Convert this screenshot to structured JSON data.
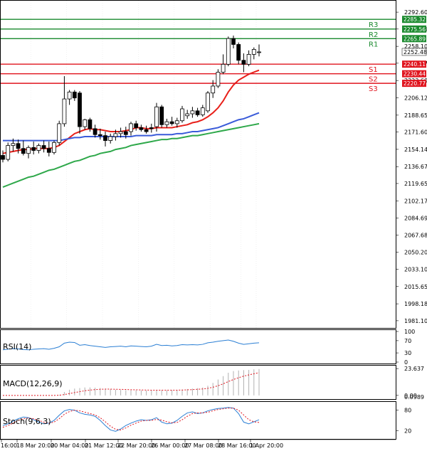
{
  "chart_data": [
    {
      "type": "candlestick",
      "title": "",
      "x_labels": [
        "16:00",
        "18 Mar 20:00",
        "20 Mar 04:00",
        "21 Mar 12:00",
        "22 Mar 20:00",
        "26 Mar 00:00",
        "27 Mar 08:00",
        "28 Mar 16:00",
        "1 Apr 20:00"
      ],
      "y_ticks": [
        2292.6,
        2275.56,
        2258.1,
        2241.07,
        2223.6,
        2206.12,
        2188.65,
        2171.6,
        2154.14,
        2136.67,
        2119.65,
        2102.17,
        2084.69,
        2067.68,
        2050.2,
        2033.1,
        2015.65,
        1998.18,
        1981.1
      ],
      "y_tick_labels": [
        "2292.60",
        "2275.56",
        "2258.10",
        "2241.07",
        "2223.60",
        "2206.12",
        "2188.65",
        "2171.60",
        "2154.14",
        "2136.67",
        "2119.65",
        "2102.17",
        "2084.69",
        "2067.68",
        "2050.20",
        "2033.10",
        "2015.65",
        "1998.18",
        "1981.10"
      ],
      "ylim": [
        1976.0,
        2302.0
      ],
      "last_price": 2252.48,
      "last_price_label": "2252.48",
      "candles": [
        {
          "o": 2148.0,
          "h": 2153.0,
          "l": 2141.0,
          "c": 2144.0
        },
        {
          "o": 2144.0,
          "h": 2161.0,
          "l": 2142.0,
          "c": 2158.0
        },
        {
          "o": 2158.0,
          "h": 2165.0,
          "l": 2152.0,
          "c": 2160.0
        },
        {
          "o": 2160.0,
          "h": 2164.0,
          "l": 2150.0,
          "c": 2155.0
        },
        {
          "o": 2155.0,
          "h": 2163.0,
          "l": 2148.0,
          "c": 2150.0
        },
        {
          "o": 2150.0,
          "h": 2158.0,
          "l": 2145.0,
          "c": 2156.0
        },
        {
          "o": 2156.0,
          "h": 2162.0,
          "l": 2149.0,
          "c": 2153.0
        },
        {
          "o": 2153.0,
          "h": 2160.0,
          "l": 2150.0,
          "c": 2158.0
        },
        {
          "o": 2158.0,
          "h": 2163.0,
          "l": 2151.0,
          "c": 2155.0
        },
        {
          "o": 2155.0,
          "h": 2162.0,
          "l": 2147.0,
          "c": 2151.0
        },
        {
          "o": 2151.0,
          "h": 2163.0,
          "l": 2149.0,
          "c": 2161.0
        },
        {
          "o": 2161.0,
          "h": 2183.0,
          "l": 2158.0,
          "c": 2180.0
        },
        {
          "o": 2180.0,
          "h": 2228.0,
          "l": 2177.0,
          "c": 2205.0
        },
        {
          "o": 2205.0,
          "h": 2214.0,
          "l": 2199.0,
          "c": 2212.0
        },
        {
          "o": 2212.0,
          "h": 2214.0,
          "l": 2203.0,
          "c": 2206.0
        },
        {
          "o": 2211.0,
          "h": 2213.0,
          "l": 2170.0,
          "c": 2177.0
        },
        {
          "o": 2177.0,
          "h": 2185.0,
          "l": 2174.0,
          "c": 2184.0
        },
        {
          "o": 2184.0,
          "h": 2186.0,
          "l": 2172.0,
          "c": 2175.0
        },
        {
          "o": 2175.0,
          "h": 2179.0,
          "l": 2166.0,
          "c": 2169.0
        },
        {
          "o": 2169.0,
          "h": 2175.0,
          "l": 2164.0,
          "c": 2168.0
        },
        {
          "o": 2168.0,
          "h": 2172.0,
          "l": 2157.0,
          "c": 2163.0
        },
        {
          "o": 2163.0,
          "h": 2170.0,
          "l": 2160.0,
          "c": 2167.0
        },
        {
          "o": 2167.0,
          "h": 2174.0,
          "l": 2163.0,
          "c": 2170.0
        },
        {
          "o": 2170.0,
          "h": 2176.0,
          "l": 2166.0,
          "c": 2172.0
        },
        {
          "o": 2172.0,
          "h": 2177.0,
          "l": 2165.0,
          "c": 2169.0
        },
        {
          "o": 2172.0,
          "h": 2182.0,
          "l": 2168.0,
          "c": 2180.0
        },
        {
          "o": 2180.0,
          "h": 2183.0,
          "l": 2173.0,
          "c": 2176.0
        },
        {
          "o": 2176.0,
          "h": 2179.0,
          "l": 2172.0,
          "c": 2174.0
        },
        {
          "o": 2174.0,
          "h": 2178.0,
          "l": 2170.0,
          "c": 2172.0
        },
        {
          "o": 2176.0,
          "h": 2180.0,
          "l": 2171.0,
          "c": 2175.0
        },
        {
          "o": 2177.0,
          "h": 2201.0,
          "l": 2172.0,
          "c": 2197.0
        },
        {
          "o": 2197.0,
          "h": 2199.0,
          "l": 2176.0,
          "c": 2179.0
        },
        {
          "o": 2179.0,
          "h": 2185.0,
          "l": 2176.0,
          "c": 2182.0
        },
        {
          "o": 2182.0,
          "h": 2187.0,
          "l": 2178.0,
          "c": 2180.0
        },
        {
          "o": 2180.0,
          "h": 2186.0,
          "l": 2176.0,
          "c": 2183.0
        },
        {
          "o": 2183.0,
          "h": 2198.0,
          "l": 2181.0,
          "c": 2195.0
        },
        {
          "o": 2188.0,
          "h": 2194.0,
          "l": 2185.0,
          "c": 2190.0
        },
        {
          "o": 2190.0,
          "h": 2197.0,
          "l": 2186.0,
          "c": 2193.0
        },
        {
          "o": 2193.0,
          "h": 2196.0,
          "l": 2187.0,
          "c": 2189.0
        },
        {
          "o": 2189.0,
          "h": 2199.0,
          "l": 2187.0,
          "c": 2196.0
        },
        {
          "o": 2193.0,
          "h": 2213.0,
          "l": 2191.0,
          "c": 2211.0
        },
        {
          "o": 2211.0,
          "h": 2224.0,
          "l": 2206.0,
          "c": 2218.0
        },
        {
          "o": 2218.0,
          "h": 2235.0,
          "l": 2216.0,
          "c": 2232.0
        },
        {
          "o": 2232.0,
          "h": 2250.0,
          "l": 2230.0,
          "c": 2240.0
        },
        {
          "o": 2240.0,
          "h": 2268.0,
          "l": 2238.0,
          "c": 2266.0
        },
        {
          "o": 2266.0,
          "h": 2269.0,
          "l": 2256.0,
          "c": 2260.0
        },
        {
          "o": 2260.0,
          "h": 2262.0,
          "l": 2240.0,
          "c": 2244.0
        },
        {
          "o": 2244.0,
          "h": 2251.0,
          "l": 2232.0,
          "c": 2240.0
        },
        {
          "o": 2240.0,
          "h": 2254.0,
          "l": 2238.0,
          "c": 2250.0
        },
        {
          "o": 2250.0,
          "h": 2257.0,
          "l": 2245.0,
          "c": 2255.0
        },
        {
          "o": 2252.0,
          "h": 2260.0,
          "l": 2248.0,
          "c": 2252.48
        }
      ],
      "moving_averages": [
        {
          "color": "#e8201a",
          "values": [
            2150.0,
            2151.0,
            2152.0,
            2153.0,
            2154.0,
            2154.0,
            2155.0,
            2155.0,
            2155.0,
            2155.0,
            2156.0,
            2158.0,
            2162.0,
            2166.0,
            2170.0,
            2172.0,
            2174.0,
            2175.0,
            2174.0,
            2174.0,
            2173.0,
            2172.0,
            2172.0,
            2172.0,
            2173.0,
            2174.0,
            2176.0,
            2176.0,
            2175.0,
            2175.0,
            2176.0,
            2176.0,
            2176.0,
            2176.0,
            2177.0,
            2178.0,
            2179.0,
            2181.0,
            2182.0,
            2184.0,
            2187.0,
            2191.0,
            2196.0,
            2203.0,
            2212.0,
            2219.0,
            2224.0,
            2227.0,
            2230.0,
            2232.0,
            2234.0
          ]
        },
        {
          "color": "#3a5bd9",
          "values": [
            2163.0,
            2163.0,
            2163.0,
            2163.0,
            2163.0,
            2163.0,
            2163.0,
            2163.0,
            2163.0,
            2163.0,
            2163.0,
            2163.0,
            2164.0,
            2165.0,
            2166.0,
            2166.0,
            2167.0,
            2167.0,
            2167.0,
            2167.0,
            2167.0,
            2167.0,
            2167.0,
            2167.0,
            2167.0,
            2167.0,
            2168.0,
            2168.0,
            2168.0,
            2168.0,
            2169.0,
            2169.0,
            2169.0,
            2169.0,
            2170.0,
            2170.0,
            2171.0,
            2172.0,
            2172.0,
            2173.0,
            2174.0,
            2175.0,
            2176.0,
            2178.0,
            2180.0,
            2182.0,
            2184.0,
            2185.0,
            2187.0,
            2189.0,
            2191.0
          ]
        },
        {
          "color": "#2ea84a",
          "values": [
            2116.0,
            2118.0,
            2120.0,
            2122.0,
            2124.0,
            2126.0,
            2127.0,
            2129.0,
            2131.0,
            2133.0,
            2134.0,
            2136.0,
            2138.0,
            2140.0,
            2142.0,
            2143.0,
            2145.0,
            2147.0,
            2148.0,
            2150.0,
            2151.0,
            2152.0,
            2154.0,
            2155.0,
            2156.0,
            2158.0,
            2159.0,
            2160.0,
            2161.0,
            2162.0,
            2163.0,
            2164.0,
            2164.0,
            2165.0,
            2165.0,
            2166.0,
            2167.0,
            2168.0,
            2168.0,
            2169.0,
            2170.0,
            2171.0,
            2172.0,
            2173.0,
            2174.0,
            2175.0,
            2176.0,
            2177.0,
            2178.0,
            2179.0,
            2180.0
          ]
        }
      ],
      "levels": [
        {
          "name": "R3",
          "value": 2285.32,
          "label": "2285.32",
          "color": "#1a8a2e"
        },
        {
          "name": "R2",
          "value": 2275.56,
          "label": "2275.56",
          "color": "#1a8a2e"
        },
        {
          "name": "R1",
          "value": 2265.89,
          "label": "2265.89",
          "color": "#1a8a2e"
        },
        {
          "name": "S1",
          "value": 2240.11,
          "label": "2240.11",
          "color": "#e0141e"
        },
        {
          "name": "S2",
          "value": 2230.44,
          "label": "2230.44",
          "color": "#e0141e"
        },
        {
          "name": "S3",
          "value": 2220.77,
          "label": "2220.77",
          "color": "#e0141e"
        }
      ]
    },
    {
      "type": "line",
      "title": "RSI(14)",
      "y_ticks": [
        100,
        70,
        30,
        0
      ],
      "y_tick_labels": [
        "100",
        "70",
        "30",
        "0"
      ],
      "ylim": [
        0,
        100
      ],
      "color": "#2b7fd4",
      "values": [
        40,
        42,
        44,
        43,
        41,
        40,
        42,
        43,
        44,
        42,
        45,
        50,
        62,
        65,
        64,
        55,
        57,
        54,
        52,
        50,
        48,
        50,
        51,
        52,
        50,
        53,
        52,
        51,
        50,
        52,
        58,
        54,
        55,
        53,
        54,
        57,
        56,
        57,
        56,
        58,
        63,
        65,
        68,
        70,
        72,
        68,
        62,
        58,
        60,
        62,
        63
      ]
    },
    {
      "type": "bar",
      "title": "MACD(12,26,9)",
      "y_ticks": [
        23.637,
        0.0
      ],
      "y_tick_labels": [
        "23.637",
        "0.00"
      ],
      "signal_label": "0.0989",
      "ylim": [
        -2,
        25
      ],
      "bar_color": "#b0b0b0",
      "signal_color": "#e0141e",
      "values": [
        0,
        0,
        0,
        0,
        0,
        0,
        0,
        0,
        0,
        0,
        0,
        0.5,
        3,
        5,
        6,
        6.5,
        7,
        7,
        6.8,
        6.5,
        6,
        5.5,
        5,
        4.8,
        4.6,
        4.5,
        4.5,
        4.4,
        4.3,
        4.2,
        4.6,
        4.5,
        4.5,
        4.6,
        4.8,
        5.2,
        5.6,
        6,
        6.4,
        7,
        8.5,
        11,
        14,
        17,
        20,
        21.5,
        22,
        22.3,
        22.5,
        23,
        23.3
      ],
      "signal": [
        0,
        0,
        0,
        0,
        0,
        0,
        0,
        0,
        0,
        0,
        0,
        0.1,
        0.7,
        1.6,
        2.5,
        3.3,
        4.1,
        4.7,
        5.1,
        5.4,
        5.5,
        5.5,
        5.4,
        5.3,
        5.2,
        5.0,
        4.9,
        4.8,
        4.7,
        4.6,
        4.6,
        4.6,
        4.6,
        4.6,
        4.6,
        4.7,
        4.9,
        5.1,
        5.4,
        5.7,
        6.2,
        7.2,
        8.5,
        10.2,
        12.2,
        14.0,
        15.6,
        17.0,
        18.1,
        19.1,
        20.0
      ]
    },
    {
      "type": "line",
      "title": "Stoch(9,6,3)",
      "y_ticks": [
        80,
        20
      ],
      "y_tick_labels": [
        "80",
        "20"
      ],
      "ylim": [
        0,
        100
      ],
      "series": [
        {
          "color": "#2b7fd4",
          "values": [
            35,
            40,
            48,
            55,
            60,
            58,
            52,
            45,
            40,
            42,
            50,
            65,
            78,
            82,
            80,
            72,
            68,
            66,
            62,
            50,
            35,
            22,
            18,
            25,
            35,
            42,
            48,
            52,
            50,
            52,
            58,
            45,
            40,
            42,
            50,
            62,
            72,
            75,
            70,
            72,
            78,
            82,
            85,
            86,
            88,
            86,
            70,
            45,
            40,
            46,
            52
          ]
        },
        {
          "color": "#e0141e",
          "values": [
            30,
            35,
            42,
            50,
            55,
            57,
            55,
            50,
            45,
            42,
            45,
            55,
            68,
            76,
            80,
            78,
            74,
            70,
            66,
            58,
            46,
            33,
            24,
            22,
            28,
            36,
            42,
            48,
            50,
            50,
            53,
            51,
            46,
            43,
            44,
            52,
            62,
            70,
            72,
            72,
            74,
            78,
            82,
            84,
            86,
            86,
            80,
            66,
            52,
            46,
            44
          ]
        }
      ]
    }
  ]
}
